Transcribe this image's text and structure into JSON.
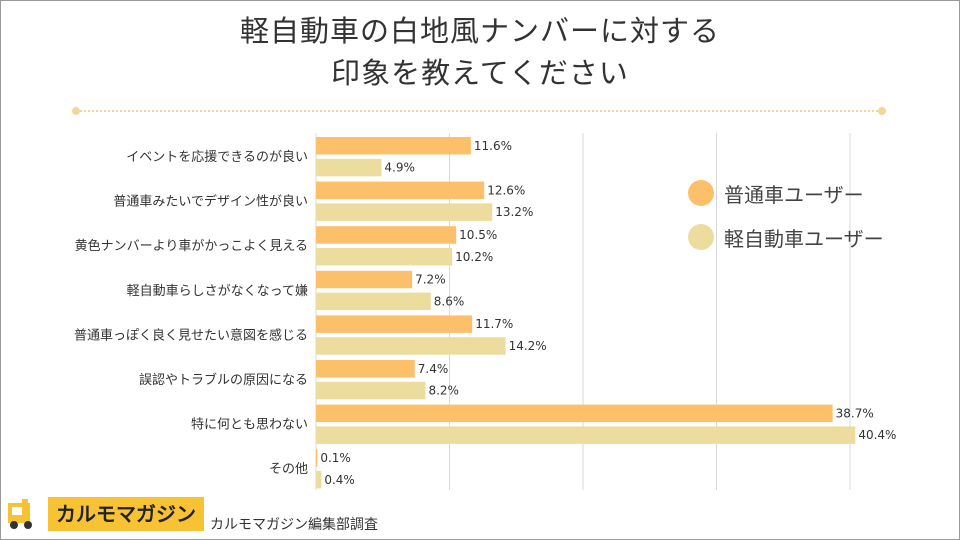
{
  "title_lines": [
    "軽自動車の白地風ナンバーに対する",
    "印象を教えてください"
  ],
  "chart_data": {
    "type": "bar",
    "orientation": "horizontal",
    "title": "軽自動車の白地風ナンバーに対する印象を教えてください",
    "categories": [
      "イベントを応援できるのが良い",
      "普通車みたいでデザイン性が良い",
      "黄色ナンバーより車がかっこよく見える",
      "軽自動車らしさがなくなって嫌",
      "普通車っぽく良く見せたい意図を感じる",
      "誤認やトラブルの原因になる",
      "特に何とも思わない",
      "その他"
    ],
    "series": [
      {
        "name": "普通車ユーザー",
        "color": "#fcc06b",
        "values": [
          11.6,
          12.6,
          10.5,
          7.2,
          11.7,
          7.4,
          38.7,
          0.1
        ],
        "labels": [
          "11.6%",
          "12.6%",
          "10.5%",
          "7.2%",
          "11.7%",
          "7.4%",
          "38.7%",
          "0.1%"
        ]
      },
      {
        "name": "軽自動車ユーザー",
        "color": "#ecdc9e",
        "values": [
          4.9,
          13.2,
          10.2,
          8.6,
          14.2,
          8.2,
          40.4,
          0.4
        ],
        "labels": [
          "4.9%",
          "13.2%",
          "10.2%",
          "8.6%",
          "14.2%",
          "8.2%",
          "40.4%",
          "0.4%"
        ]
      }
    ],
    "xlim": [
      0,
      40
    ],
    "grid": true,
    "legend": "right"
  },
  "logo": {
    "text": "カルモマガジン",
    "icon": "car-logo-icon",
    "color": "#f7c234"
  },
  "source": "カルモマガジン編集部調査"
}
